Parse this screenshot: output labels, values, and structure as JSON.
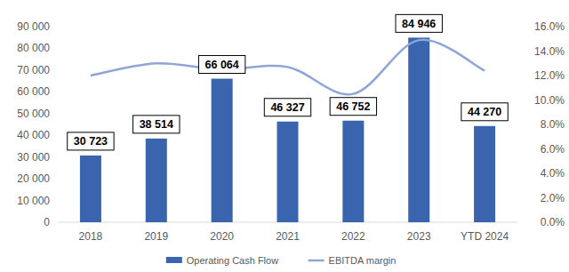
{
  "chart_data": {
    "type": "bar",
    "categories": [
      "2018",
      "2019",
      "2020",
      "2021",
      "2022",
      "2023",
      "YTD 2024"
    ],
    "series": [
      {
        "name": "Operating Cash Flow",
        "type": "bar",
        "color": "#3a64ad",
        "values": [
          30723,
          38514,
          66064,
          46327,
          46752,
          84946,
          44270
        ],
        "value_labels": [
          "30 723",
          "38 514",
          "66 064",
          "46 327",
          "46 752",
          "84 946",
          "44 270"
        ],
        "data_labels": true
      },
      {
        "name": "EBITDA margin",
        "type": "line",
        "color": "#8fa4d8",
        "axis": "y2",
        "values": [
          12.0,
          13.0,
          12.5,
          12.7,
          10.5,
          14.9,
          12.4
        ]
      }
    ],
    "ylim": [
      0,
      90000
    ],
    "yticks": [
      {
        "value": 0,
        "label": "0"
      },
      {
        "value": 10000,
        "label": "10 000"
      },
      {
        "value": 20000,
        "label": "20 000"
      },
      {
        "value": 30000,
        "label": "30 000"
      },
      {
        "value": 40000,
        "label": "40 000"
      },
      {
        "value": 50000,
        "label": "50 000"
      },
      {
        "value": 60000,
        "label": "60 000"
      },
      {
        "value": 70000,
        "label": "70 000"
      },
      {
        "value": 80000,
        "label": "80 000"
      },
      {
        "value": 90000,
        "label": "90 000"
      }
    ],
    "y2lim": [
      0,
      16
    ],
    "y2ticks": [
      {
        "value": 0,
        "label": "0.0%"
      },
      {
        "value": 2,
        "label": "2.0%"
      },
      {
        "value": 4,
        "label": "4.0%"
      },
      {
        "value": 6,
        "label": "6.0%"
      },
      {
        "value": 8,
        "label": "8.0%"
      },
      {
        "value": 10,
        "label": "10.0%"
      },
      {
        "value": 12,
        "label": "12.0%"
      },
      {
        "value": 14,
        "label": "14.0%"
      },
      {
        "value": 16,
        "label": "16.0%"
      }
    ],
    "grid": false,
    "legend": "bottom"
  }
}
